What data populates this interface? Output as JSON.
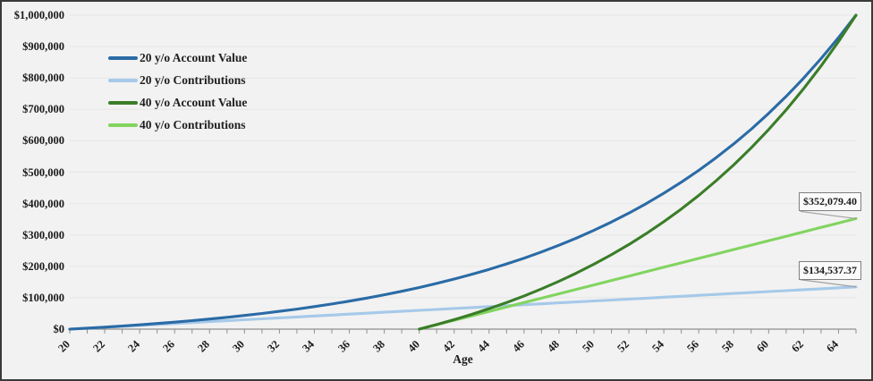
{
  "chart_style": {
    "background": "#f2f2f2",
    "frame_border_color": "#3a3a3a",
    "gridline_color": "#e6e6e6",
    "axis_line_color": "#909090",
    "text_color": "#1b1b1b",
    "callout_border_color": "#7f7f7f",
    "leader_line_color": "#a0a0a0"
  },
  "chart_data": {
    "type": "line",
    "title": "",
    "xlabel": "Age",
    "ylabel": "",
    "xlim": [
      20,
      65
    ],
    "ylim": [
      0,
      1000000
    ],
    "xticks": [
      20,
      22,
      24,
      26,
      28,
      30,
      32,
      34,
      36,
      38,
      40,
      42,
      44,
      46,
      48,
      50,
      52,
      54,
      56,
      58,
      60,
      62,
      64
    ],
    "minor_xticks_every": 1,
    "yticks": [
      0,
      100000,
      200000,
      300000,
      400000,
      500000,
      600000,
      700000,
      800000,
      900000,
      1000000
    ],
    "y_tick_format": "$#,##0",
    "grid": true,
    "legend_position": "upper-left-inside",
    "x": [
      20,
      21,
      22,
      23,
      24,
      25,
      26,
      27,
      28,
      29,
      30,
      31,
      32,
      33,
      34,
      35,
      36,
      37,
      38,
      39,
      40,
      41,
      42,
      43,
      44,
      45,
      46,
      47,
      48,
      49,
      50,
      51,
      52,
      53,
      54,
      55,
      56,
      57,
      58,
      59,
      60,
      61,
      62,
      63,
      64,
      65
    ],
    "series": [
      {
        "name": "20 y/o Account Value",
        "color": "#2a6ba6",
        "values": [
          0,
          3089,
          6408,
          9973,
          13804,
          17918,
          22338,
          27084,
          32184,
          37661,
          43545,
          49865,
          56654,
          63947,
          71780,
          80194,
          89232,
          98940,
          109369,
          120570,
          132602,
          145528,
          159411,
          174324,
          190343,
          207550,
          226035,
          245888,
          267216,
          290124,
          314733,
          341164,
          369556,
          400055,
          432816,
          468007,
          505809,
          546412,
          590030,
          636880,
          687208,
          741262,
          799331,
          861700,
          928697,
          1000000
        ]
      },
      {
        "name": "20 y/o Contributions",
        "color": "#a6c9e9",
        "values": [
          0,
          2990,
          5979,
          8969,
          11959,
          14949,
          17938,
          20928,
          23918,
          26907,
          29897,
          32887,
          35877,
          38866,
          41856,
          44846,
          47836,
          50825,
          53815,
          56805,
          59794,
          62784,
          65774,
          68764,
          71753,
          74743,
          77733,
          80722,
          83712,
          86702,
          89692,
          92681,
          95671,
          98661,
          101650,
          104640,
          107630,
          110620,
          113609,
          116599,
          119589,
          122579,
          125568,
          128558,
          131548,
          134537.37
        ]
      },
      {
        "name": "40 y/o Account Value",
        "color": "#3a7d28",
        "values": [
          null,
          null,
          null,
          null,
          null,
          null,
          null,
          null,
          null,
          null,
          null,
          null,
          null,
          null,
          null,
          null,
          null,
          null,
          null,
          null,
          0,
          14567,
          30232,
          47084,
          65217,
          84722,
          105695,
          128263,
          152543,
          178658,
          206747,
          236966,
          269462,
          304425,
          342041,
          382505,
          426024,
          472834,
          523196,
          577360,
          635642,
          698321,
          765759,
          838288,
          916320,
          1000000
        ]
      },
      {
        "name": "40 y/o Contributions",
        "color": "#82d45f",
        "values": [
          null,
          null,
          null,
          null,
          null,
          null,
          null,
          null,
          null,
          null,
          null,
          null,
          null,
          null,
          null,
          null,
          null,
          null,
          null,
          null,
          0,
          14083,
          28166,
          42250,
          56333,
          70416,
          84499,
          98583,
          112666,
          126749,
          140832,
          154915,
          168998,
          183081,
          197164,
          211248,
          225331,
          239414,
          253497,
          267580,
          281663,
          295747,
          309830,
          323913,
          337996,
          352079.4
        ]
      }
    ],
    "annotations": [
      {
        "text": "$352,079.40",
        "series": "40 y/o Contributions",
        "x": 65,
        "y": 352079.4
      },
      {
        "text": "$134,537.37",
        "series": "20 y/o Contributions",
        "x": 65,
        "y": 134537.37
      }
    ]
  }
}
